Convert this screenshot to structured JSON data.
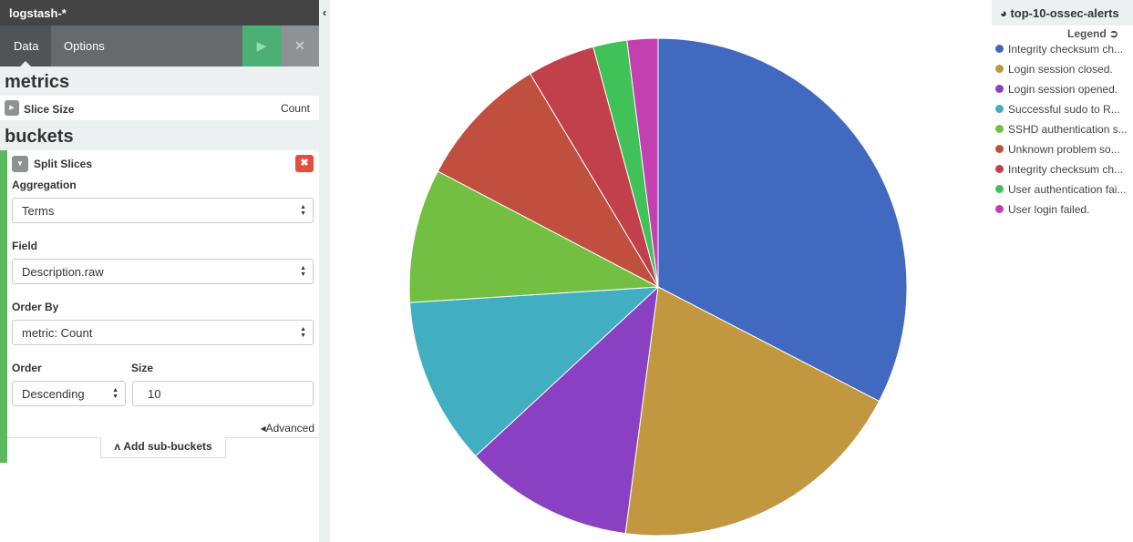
{
  "sidebar": {
    "index_pattern": "logstash-*",
    "tabs": [
      "Data",
      "Options"
    ],
    "metrics": {
      "heading": "metrics",
      "agg_label": "Slice Size",
      "agg_value": "Count"
    },
    "buckets": {
      "heading": "buckets",
      "agg_label": "Split Slices",
      "fields": [
        {
          "label": "Aggregation",
          "value": "Terms"
        },
        {
          "label": "Field",
          "value": "Description.raw"
        },
        {
          "label": "Order By",
          "value": "metric: Count"
        }
      ],
      "order": {
        "label": "Order",
        "value": "Descending"
      },
      "size": {
        "label": "Size",
        "value": 10
      },
      "advanced": "Advanced",
      "add_sub_buckets": "Add sub-buckets"
    }
  },
  "chart_data": {
    "type": "pie",
    "title": "top-10-ossec-alerts",
    "legend_title": "Legend",
    "categories": [
      "Integrity checksum ch...",
      "Login session closed.",
      "Login session opened.",
      "Successful sudo to R...",
      "SSHD authentication s...",
      "Unknown problem so...",
      "Integrity checksum ch...",
      "User authentication fai...",
      "User login failed."
    ],
    "values": [
      32.6,
      19.5,
      11.0,
      10.9,
      8.7,
      8.7,
      4.4,
      2.2,
      2.0
    ],
    "colors": [
      "#4169c0",
      "#c1983f",
      "#8a40c2",
      "#41aec2",
      "#72bf41",
      "#c04f3f",
      "#c2404c",
      "#40c259",
      "#c240b0"
    ]
  }
}
